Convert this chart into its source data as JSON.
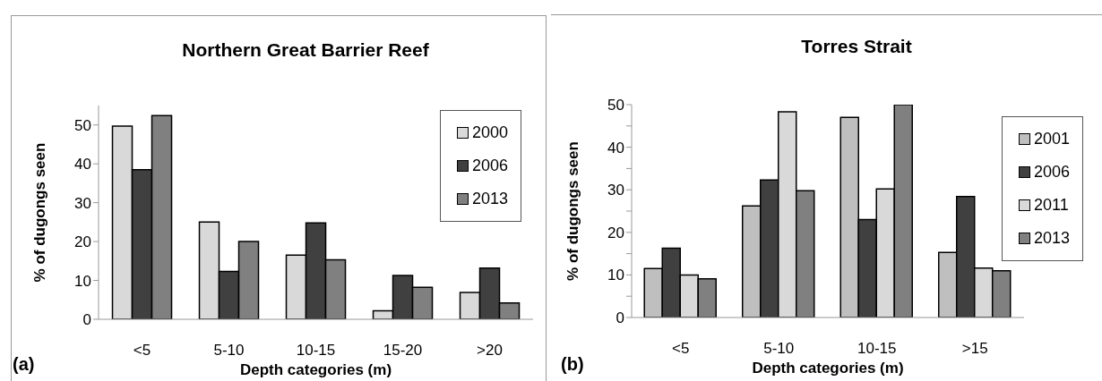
{
  "chart_data": [
    {
      "type": "bar",
      "title": "Northern Great Barrier Reef",
      "xlabel": "Depth categories (m)",
      "ylabel": "% of dugongs seen",
      "categories": [
        "<5",
        "5-10",
        "10-15",
        "15-20",
        ">20"
      ],
      "series": [
        {
          "name": "2000",
          "color": "#d9d9d9",
          "values": [
            49.7,
            25,
            16.5,
            2.2,
            6.9
          ]
        },
        {
          "name": "2006",
          "color": "#404040",
          "values": [
            38.5,
            12.3,
            24.8,
            11.3,
            13.2
          ]
        },
        {
          "name": "2013",
          "color": "#808080",
          "values": [
            52.4,
            20,
            15.3,
            8.2,
            4.2
          ]
        }
      ],
      "ylim": [
        0,
        55
      ],
      "yticks": [
        0,
        10,
        20,
        30,
        40,
        50
      ],
      "grid": false,
      "legend": "top right",
      "annotations": [
        "(a)"
      ]
    },
    {
      "type": "bar",
      "title": "Torres Strait",
      "xlabel": "Depth categories (m)",
      "ylabel": "% of dugongs seen",
      "categories": [
        "<5",
        "5-10",
        "10-15",
        ">15"
      ],
      "series": [
        {
          "name": "2001",
          "color": "#bfbfbf",
          "values": [
            11.5,
            26.2,
            47,
            15.3
          ]
        },
        {
          "name": "2006",
          "color": "#404040",
          "values": [
            16.3,
            32.3,
            23,
            28.4
          ]
        },
        {
          "name": "2011",
          "color": "#d9d9d9",
          "values": [
            10,
            48.3,
            30.2,
            11.6
          ]
        },
        {
          "name": "2013",
          "color": "#808080",
          "values": [
            9.1,
            29.8,
            50,
            11
          ]
        }
      ],
      "ylim": [
        0,
        50
      ],
      "yticks": [
        0,
        {
          "value": 5,
          "label": null
        },
        10,
        {
          "value": 15,
          "label": null
        },
        20,
        {
          "value": 25,
          "label": null
        },
        30,
        {
          "value": 35,
          "label": null
        },
        40,
        {
          "value": 45,
          "label": null
        },
        50
      ],
      "grid": false,
      "legend": "right",
      "annotations": [
        "(b)"
      ]
    }
  ]
}
